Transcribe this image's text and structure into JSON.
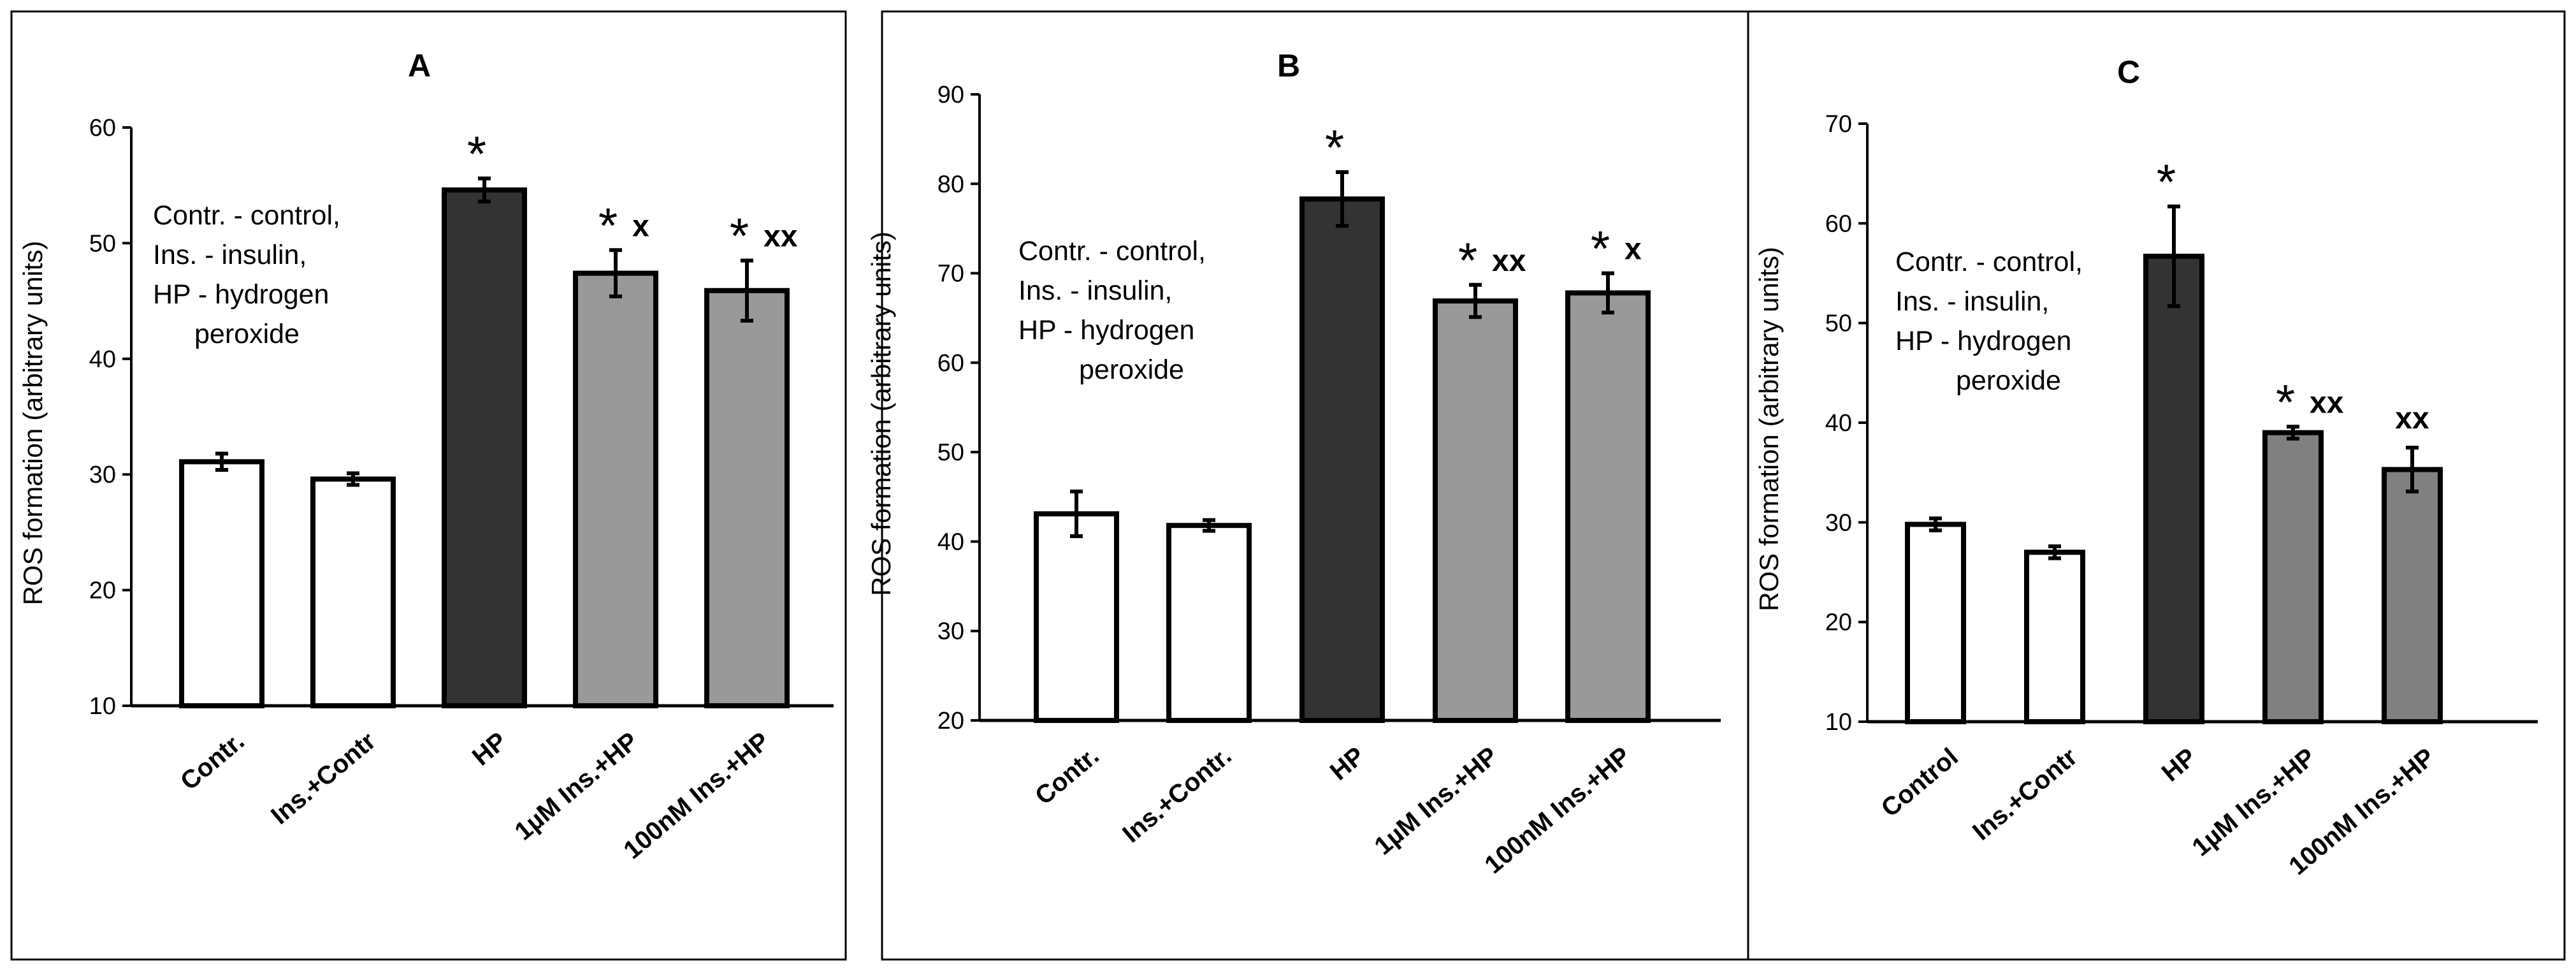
{
  "figure": {
    "panels": [
      "A",
      "B",
      "C"
    ]
  },
  "legend_note": {
    "lines": [
      "Contr. - control,",
      "Ins. - insulin,",
      "HP - hydrogen",
      "peroxide"
    ]
  },
  "colors": {
    "control_bar": "#ffffff",
    "hp_bar": "#333333",
    "insulin_hp_bar_A": "#999999",
    "insulin_hp_bar_B": "#999999",
    "insulin_hp_bar_C": "#808080",
    "outline": "#000000"
  },
  "chart_data": [
    {
      "panel": "A",
      "type": "bar",
      "title": "A",
      "xlabel": "",
      "ylabel": "ROS formation  (arbitrary units)",
      "ylim": [
        10,
        60
      ],
      "yticks": [
        10,
        20,
        30,
        40,
        50,
        60
      ],
      "categories": [
        "Contr.",
        "Ins.+Contr",
        "HP",
        "1µM Ins.+HP",
        "100nM Ins.+HP"
      ],
      "values": [
        31.1,
        29.6,
        54.6,
        47.4,
        45.9
      ],
      "errors": [
        0.7,
        0.5,
        1.0,
        2.0,
        2.6
      ],
      "annotations": [
        {
          "star": "",
          "sig": ""
        },
        {
          "star": "",
          "sig": ""
        },
        {
          "star": "*",
          "sig": ""
        },
        {
          "star": "*",
          "sig": "x"
        },
        {
          "star": "*",
          "sig": "xx"
        }
      ]
    },
    {
      "panel": "B",
      "type": "bar",
      "title": "B",
      "xlabel": "",
      "ylabel": "ROS formation  (arbitrary units)",
      "ylim": [
        20,
        90
      ],
      "yticks": [
        20,
        30,
        40,
        50,
        60,
        70,
        80,
        90
      ],
      "categories": [
        "Contr.",
        "Ins.+Contr.",
        "HP",
        "1µM Ins.+HP",
        "100nM Ins.+HP"
      ],
      "values": [
        43.1,
        41.8,
        78.3,
        66.9,
        67.8
      ],
      "errors": [
        2.5,
        0.6,
        3.0,
        1.8,
        2.2
      ],
      "annotations": [
        {
          "star": "",
          "sig": ""
        },
        {
          "star": "",
          "sig": ""
        },
        {
          "star": "*",
          "sig": ""
        },
        {
          "star": "*",
          "sig": "xx"
        },
        {
          "star": "*",
          "sig": "x"
        }
      ]
    },
    {
      "panel": "C",
      "type": "bar",
      "title": "C",
      "xlabel": "",
      "ylabel": "ROS formation  (arbitrary units)",
      "ylim": [
        10,
        70
      ],
      "yticks": [
        10,
        20,
        30,
        40,
        50,
        60,
        70
      ],
      "categories": [
        "Control",
        "Ins.+Contr",
        "HP",
        "1µM Ins.+HP",
        "100nM Ins.+HP"
      ],
      "values": [
        29.8,
        27.0,
        56.7,
        39.0,
        35.3
      ],
      "errors": [
        0.6,
        0.6,
        5.0,
        0.6,
        2.2
      ],
      "annotations": [
        {
          "star": "",
          "sig": ""
        },
        {
          "star": "",
          "sig": ""
        },
        {
          "star": "*",
          "sig": ""
        },
        {
          "star": "*",
          "sig": "xx"
        },
        {
          "star": "",
          "sig": "xx"
        }
      ]
    }
  ]
}
